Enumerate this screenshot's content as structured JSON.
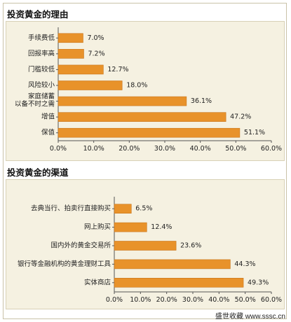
{
  "chart_data": [
    {
      "type": "bar",
      "orientation": "horizontal",
      "title": "投资黄金的理由",
      "categories": [
        "手续费低",
        "回报率高",
        "门槛较低",
        "风险较小",
        "家庭储蓄|以备不时之需",
        "增值",
        "保值"
      ],
      "values": [
        7.0,
        7.2,
        12.7,
        18.0,
        36.1,
        47.2,
        51.1
      ],
      "value_labels": [
        "7.0%",
        "7.2%",
        "12.7%",
        "18.0%",
        "36.1%",
        "47.2%",
        "51.1%"
      ],
      "xlim": [
        0,
        60
      ],
      "xticks": [
        "0.0%",
        "10.0%",
        "20.0%",
        "30.0%",
        "40.0%",
        "50.0%",
        "60.0%"
      ],
      "grid": false,
      "bar_color": "#e8922a"
    },
    {
      "type": "bar",
      "orientation": "horizontal",
      "title": "投资黄金的渠道",
      "categories": [
        "去典当行、拍卖行直接购买",
        "网上购买",
        "国内外的黄金交易所",
        "银行等金融机构的黄金理财工具",
        "实体商店"
      ],
      "values": [
        6.5,
        12.4,
        23.6,
        44.3,
        49.3
      ],
      "value_labels": [
        "6.5%",
        "12.4%",
        "23.6%",
        "44.3%",
        "49.3%"
      ],
      "xlim": [
        0,
        60
      ],
      "xticks": [
        "0.0%",
        "10.0%",
        "20.0%",
        "30.0%",
        "40.0%",
        "50.0%",
        "60.0%"
      ],
      "grid": false,
      "bar_color": "#e8922a"
    }
  ],
  "watermark": "盛世收藏 www.sssc.cn"
}
